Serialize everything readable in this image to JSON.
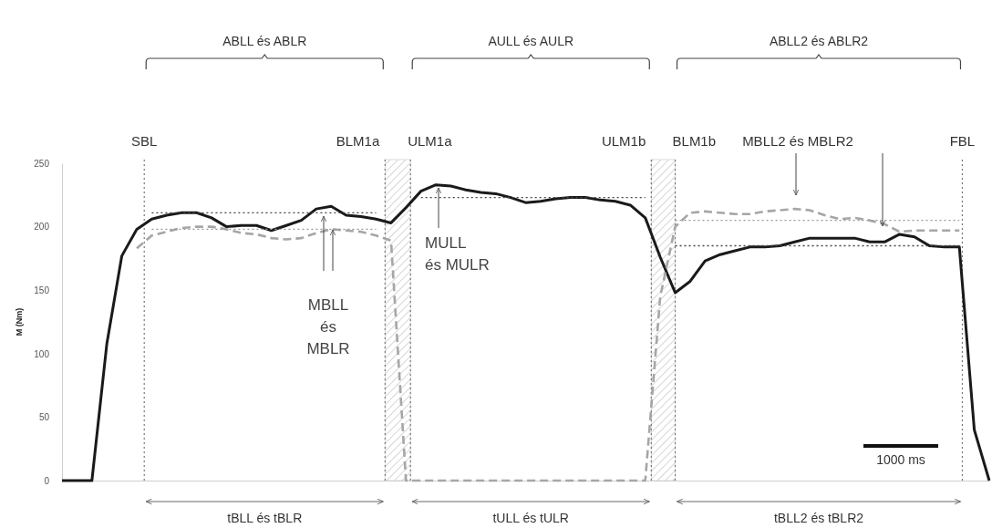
{
  "chart_data": {
    "type": "line",
    "ylabel": "M (Nm)",
    "ylim": [
      0,
      250
    ],
    "yticks": [
      0,
      50,
      100,
      150,
      200,
      250
    ],
    "tick_labels": "y",
    "categories": [
      null,
      null,
      null,
      null,
      null,
      null,
      null,
      null,
      null,
      null,
      null,
      null,
      null,
      null,
      null,
      null,
      null,
      null,
      null,
      null,
      null,
      null,
      null,
      null,
      null,
      null,
      null,
      null,
      null,
      null,
      null,
      null,
      null,
      null,
      null,
      null,
      null,
      null,
      null,
      null,
      null,
      null,
      null,
      null,
      null,
      null,
      null,
      null,
      null,
      null,
      null,
      null,
      null,
      null,
      null,
      null,
      null,
      null,
      null,
      null,
      null,
      null,
      null
    ],
    "series": [
      {
        "color": "#1a1a1a",
        "line_style": "solid",
        "values": [
          0,
          0,
          0,
          108,
          177,
          198,
          206,
          209,
          211,
          211,
          207,
          200,
          201,
          201,
          197,
          201,
          205,
          214,
          216,
          209,
          208,
          206,
          203,
          215,
          228,
          233,
          232,
          229,
          227,
          226,
          223,
          219,
          220,
          222,
          223,
          223,
          221,
          220,
          217,
          207,
          176,
          148,
          157,
          173,
          178,
          181,
          184,
          184,
          185,
          188,
          191,
          191,
          191,
          191,
          188,
          188,
          194,
          192,
          185,
          184,
          184,
          40,
          0
        ]
      },
      {
        "color": "#a6a6a6",
        "line_style": "dashed",
        "values": [
          null,
          null,
          null,
          null,
          null,
          183,
          193,
          196,
          199,
          200,
          200,
          198,
          195,
          194,
          191,
          190,
          191,
          195,
          198,
          197,
          196,
          193,
          189,
          0,
          0,
          0,
          0,
          0,
          0,
          0,
          0,
          0,
          0,
          0,
          0,
          0,
          0,
          0,
          0,
          0,
          145,
          200,
          211,
          212,
          211,
          210,
          210,
          212,
          213,
          214,
          213,
          209,
          206,
          207,
          205,
          202,
          196,
          197,
          197,
          197,
          197,
          null,
          null
        ]
      },
      {
        "color": "#444444",
        "line_style": "dotted",
        "values": [
          null,
          null,
          null,
          null,
          null,
          null,
          211,
          211,
          211,
          211,
          211,
          211,
          211,
          211,
          211,
          211,
          211,
          211,
          211,
          211,
          211,
          211,
          null,
          null,
          223,
          223,
          223,
          223,
          223,
          223,
          223,
          223,
          223,
          223,
          223,
          223,
          223,
          223,
          223,
          223,
          null,
          185,
          185,
          185,
          185,
          185,
          185,
          185,
          185,
          185,
          185,
          185,
          185,
          185,
          185,
          185,
          185,
          185,
          185,
          185,
          185,
          null,
          null
        ]
      },
      {
        "color": "#9a9a9a",
        "line_style": "dotted",
        "values": [
          null,
          null,
          null,
          null,
          null,
          null,
          198,
          198,
          198,
          198,
          198,
          198,
          198,
          198,
          198,
          198,
          198,
          198,
          198,
          198,
          198,
          198,
          null,
          null,
          null,
          null,
          null,
          null,
          null,
          null,
          null,
          null,
          null,
          null,
          null,
          null,
          null,
          null,
          null,
          null,
          null,
          205,
          205,
          205,
          205,
          205,
          205,
          205,
          205,
          205,
          205,
          205,
          205,
          205,
          205,
          205,
          205,
          205,
          205,
          205,
          205,
          null,
          null
        ]
      }
    ],
    "annotations": [
      "ABLL és ABLR",
      "AULL és AULR",
      "ABLL2 és ABLR2",
      "tBLL és tBLR",
      "tULL és tULR",
      "tBLL2 és tBLR2",
      "1000 ms",
      "MBLL\nés\nMBLR",
      "MULL\nés MULR",
      "MBLL2 és MBLR2",
      "SBL",
      "BLM1a",
      "ULM1a",
      "ULM1b",
      "BLM1b",
      "FBL"
    ]
  }
}
